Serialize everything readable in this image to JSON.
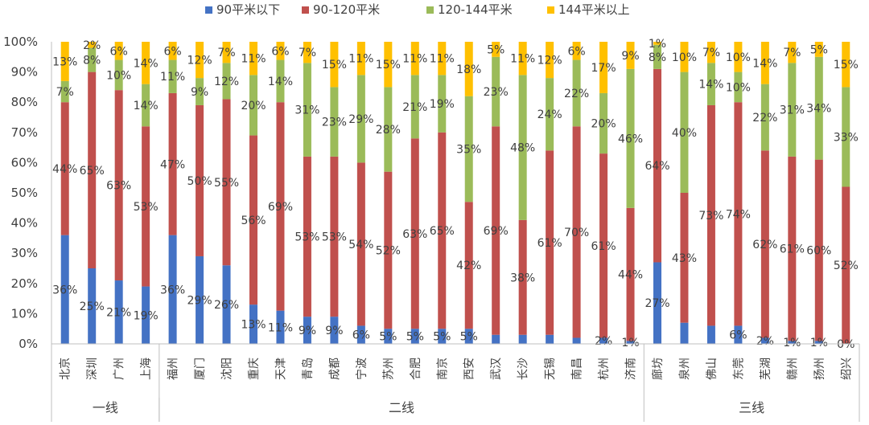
{
  "chart_data": {
    "type": "bar",
    "stacked": true,
    "percent_stacked": true,
    "title": "",
    "xlabel": "",
    "ylabel": "",
    "ylim": [
      0,
      100
    ],
    "y_ticks": [
      "0%",
      "10%",
      "20%",
      "30%",
      "40%",
      "50%",
      "60%",
      "70%",
      "80%",
      "90%",
      "100%"
    ],
    "grid": false,
    "legend_position": "top",
    "categories": [
      "北京",
      "深圳",
      "广州",
      "上海",
      "福州",
      "厦门",
      "沈阳",
      "重庆",
      "天津",
      "青岛",
      "成都",
      "宁波",
      "苏州",
      "合肥",
      "南京",
      "西安",
      "武汉",
      "长沙",
      "无锡",
      "南昌",
      "杭州",
      "济南",
      "廊坊",
      "泉州",
      "佛山",
      "东莞",
      "芜湖",
      "赣州",
      "扬州",
      "绍兴"
    ],
    "groups": [
      {
        "label": "一线",
        "count": 4
      },
      {
        "label": "二线",
        "count": 18
      },
      {
        "label": "三线",
        "count": 8
      }
    ],
    "series": [
      {
        "name": "90平米以下",
        "color": "#4472C4",
        "values": [
          36,
          25,
          21,
          19,
          36,
          29,
          26,
          13,
          11,
          9,
          9,
          6,
          5,
          5,
          5,
          5,
          3,
          3,
          3,
          2,
          2,
          1,
          27,
          7,
          6,
          6,
          2,
          1,
          1,
          0
        ]
      },
      {
        "name": "90-120平米",
        "color": "#C0504D",
        "values": [
          44,
          65,
          63,
          53,
          47,
          50,
          55,
          56,
          69,
          53,
          53,
          54,
          52,
          63,
          65,
          42,
          69,
          38,
          61,
          70,
          61,
          44,
          64,
          43,
          73,
          74,
          62,
          61,
          60,
          52
        ]
      },
      {
        "name": "120-144平米",
        "color": "#9BBB59",
        "values": [
          7,
          8,
          10,
          14,
          11,
          9,
          12,
          20,
          14,
          31,
          23,
          29,
          28,
          21,
          19,
          35,
          23,
          48,
          24,
          22,
          20,
          46,
          8,
          40,
          14,
          10,
          22,
          31,
          34,
          33
        ]
      },
      {
        "name": "144平米以上",
        "color": "#FFC000",
        "values": [
          13,
          2,
          6,
          14,
          6,
          12,
          7,
          11,
          6,
          7,
          15,
          11,
          15,
          11,
          11,
          18,
          5,
          11,
          12,
          6,
          17,
          9,
          1,
          10,
          7,
          10,
          14,
          7,
          5,
          15
        ]
      }
    ],
    "data_labels": [
      [
        "36%",
        "25%",
        "21%",
        "19%",
        "36%",
        "29%",
        "26%",
        "13%",
        "11%",
        "9%",
        "9%",
        "6%",
        "5%",
        "5%",
        "5%",
        "5%",
        "",
        "",
        "",
        "",
        "2%",
        "1%",
        "27%",
        "",
        "",
        "6%",
        "2%",
        "1%",
        "1%",
        "0%"
      ],
      [
        "44%",
        "65%",
        "63%",
        "53%",
        "47%",
        "50%",
        "55%",
        "56%",
        "69%",
        "53%",
        "53%",
        "54%",
        "52%",
        "63%",
        "65%",
        "42%",
        "69%",
        "38%",
        "61%",
        "70%",
        "61%",
        "44%",
        "64%",
        "43%",
        "73%",
        "74%",
        "62%",
        "61%",
        "60%",
        "52%"
      ],
      [
        "7%",
        "8%",
        "10%",
        "14%",
        "11%",
        "9%",
        "12%",
        "20%",
        "14%",
        "31%",
        "23%",
        "29%",
        "28%",
        "21%",
        "19%",
        "35%",
        "23%",
        "48%",
        "24%",
        "22%",
        "20%",
        "46%",
        "8%",
        "40%",
        "14%",
        "10%",
        "22%",
        "31%",
        "34%",
        "33%"
      ],
      [
        "13%",
        "2%",
        "6%",
        "14%",
        "6%",
        "12%",
        "7%",
        "11%",
        "6%",
        "7%",
        "15%",
        "11%",
        "15%",
        "11%",
        "11%",
        "18%",
        "5%",
        "11%",
        "12%",
        "6%",
        "17%",
        "9%",
        "1%",
        "10%",
        "7%",
        "10%",
        "14%",
        "7%",
        "5%",
        "15%"
      ]
    ]
  }
}
